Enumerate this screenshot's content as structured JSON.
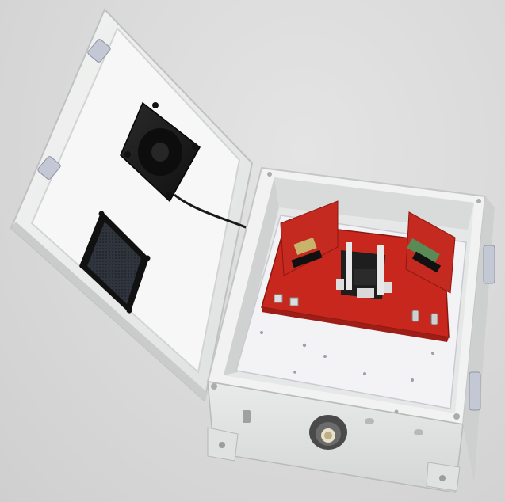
{
  "scene": {
    "subject": "open-electronics-enclosure-render",
    "colors": {
      "background": "#d9d9d9",
      "enclosure": "#eef0ee",
      "enclosure_shadow": "#c9cccb",
      "pcb": "#c8271e",
      "pcb_dark": "#9e1d16",
      "fan": "#1b1b1b",
      "grille": "#2a2d35",
      "plate": "#f4f4f6",
      "heatsink": "#1e1e1e",
      "gland": "#5b5b5b",
      "latch": "#b8bfd0"
    },
    "icons": [
      "fan-icon",
      "vent-grille-icon",
      "cable-gland-icon",
      "latch-icon"
    ]
  }
}
